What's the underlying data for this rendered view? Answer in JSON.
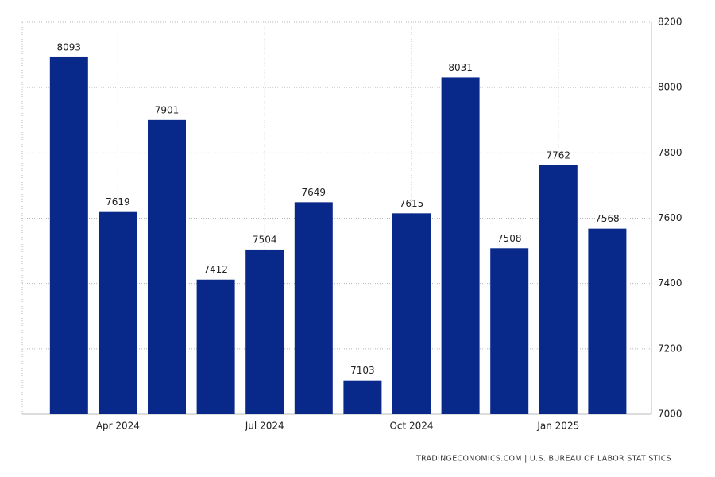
{
  "chart_data": {
    "type": "bar",
    "categories": [
      null,
      "Apr 2024",
      null,
      null,
      "Jul 2024",
      null,
      null,
      "Oct 2024",
      null,
      null,
      "Jan 2025",
      null
    ],
    "values": [
      8093,
      7619,
      7901,
      7412,
      7504,
      7649,
      7103,
      7615,
      8031,
      7508,
      7762,
      7568
    ],
    "color": "#08288a",
    "ylim": [
      7000,
      8200
    ],
    "yticks": [
      7000,
      7200,
      7400,
      7600,
      7800,
      8000,
      8200
    ],
    "grid": true,
    "source": "TRADINGECONOMICS.COM | U.S. BUREAU OF LABOR STATISTICS"
  }
}
